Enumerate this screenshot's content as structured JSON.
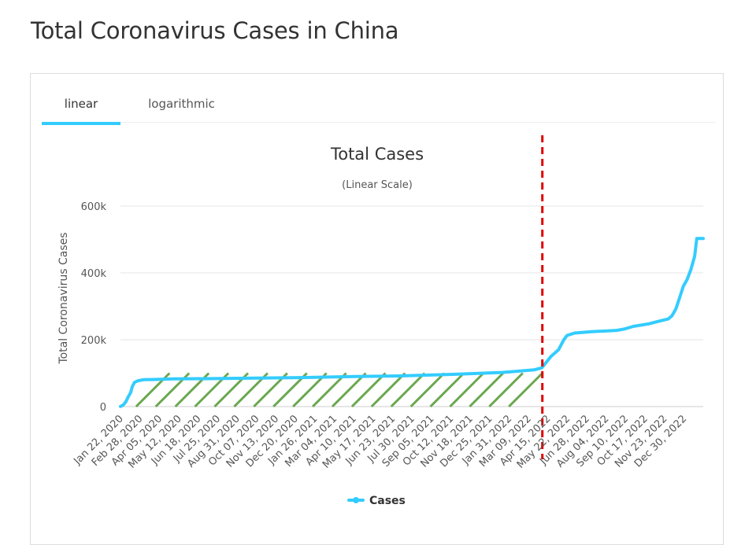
{
  "page": {
    "title": "Total Coronavirus Cases in China"
  },
  "tabs": [
    {
      "label": "linear",
      "active": true
    },
    {
      "label": "logarithmic",
      "active": false
    }
  ],
  "colors": {
    "series": "#33ccff",
    "hatch": "#6aa84f",
    "marker": "#dd0000",
    "grid": "#e6e6e6"
  },
  "chart_data": {
    "type": "line",
    "title": "Total Cases",
    "subtitle": "(Linear Scale)",
    "ylabel": "Total Coronavirus Cases",
    "xlabel": "",
    "ylim": [
      0,
      600000
    ],
    "yticks": [
      {
        "value": 0,
        "label": "0"
      },
      {
        "value": 200000,
        "label": "200k"
      },
      {
        "value": 400000,
        "label": "400k"
      },
      {
        "value": 600000,
        "label": "600k"
      }
    ],
    "x_start": "2020-01-22",
    "x_end": "2023-01-09",
    "xtick_labels": [
      "Jan 22, 2020",
      "Feb 28, 2020",
      "Apr 05, 2020",
      "May 12, 2020",
      "Jun 18, 2020",
      "Jul 25, 2020",
      "Aug 31, 2020",
      "Oct 07, 2020",
      "Nov 13, 2020",
      "Dec 20, 2020",
      "Jan 26, 2021",
      "Mar 04, 2021",
      "Apr 10, 2021",
      "May 17, 2021",
      "Jun 23, 2021",
      "Jul 30, 2021",
      "Sep 05, 2021",
      "Oct 12, 2021",
      "Nov 18, 2021",
      "Dec 25, 2021",
      "Jan 31, 2022",
      "Mar 09, 2022",
      "Apr 15, 2022",
      "May 22, 2022",
      "Jun 28, 2022",
      "Aug 04, 2022",
      "Sep 10, 2022",
      "Oct 17, 2022",
      "Nov 23, 2022",
      "Dec 30, 2022"
    ],
    "grid": true,
    "legend": {
      "position": "bottom-center"
    },
    "series": [
      {
        "name": "Cases",
        "points": [
          [
            "2020-01-22",
            571
          ],
          [
            "2020-01-27",
            4500
          ],
          [
            "2020-02-01",
            14400
          ],
          [
            "2020-02-05",
            28000
          ],
          [
            "2020-02-10",
            42700
          ],
          [
            "2020-02-13",
            60000
          ],
          [
            "2020-02-17",
            72500
          ],
          [
            "2020-02-24",
            77300
          ],
          [
            "2020-03-05",
            80500
          ],
          [
            "2020-03-20",
            81000
          ],
          [
            "2020-04-30",
            82900
          ],
          [
            "2020-07-01",
            83500
          ],
          [
            "2020-10-01",
            85500
          ],
          [
            "2021-01-01",
            87000
          ],
          [
            "2021-04-01",
            90000
          ],
          [
            "2021-07-01",
            92000
          ],
          [
            "2021-10-01",
            96500
          ],
          [
            "2021-12-31",
            102000
          ],
          [
            "2022-02-01",
            106000
          ],
          [
            "2022-03-01",
            110000
          ],
          [
            "2022-03-15",
            116000
          ],
          [
            "2022-04-01",
            150000
          ],
          [
            "2022-04-15",
            170000
          ],
          [
            "2022-04-25",
            200000
          ],
          [
            "2022-05-01",
            213000
          ],
          [
            "2022-05-15",
            220000
          ],
          [
            "2022-06-15",
            224000
          ],
          [
            "2022-08-01",
            228000
          ],
          [
            "2022-08-15",
            232000
          ],
          [
            "2022-09-01",
            240000
          ],
          [
            "2022-10-01",
            248000
          ],
          [
            "2022-10-20",
            256000
          ],
          [
            "2022-11-05",
            262000
          ],
          [
            "2022-11-12",
            272000
          ],
          [
            "2022-11-19",
            292000
          ],
          [
            "2022-11-26",
            325000
          ],
          [
            "2022-12-03",
            360000
          ],
          [
            "2022-12-10",
            380000
          ],
          [
            "2022-12-17",
            410000
          ],
          [
            "2022-12-24",
            450000
          ],
          [
            "2022-12-28",
            503000
          ],
          [
            "2023-01-09",
            503000
          ]
        ]
      }
    ],
    "annotations": {
      "vertical_dashed_line": {
        "date": "2022-03-16"
      },
      "hatched_band": {
        "from": "2020-02-20",
        "to": "2022-03-16",
        "top_value": 100000
      }
    }
  }
}
